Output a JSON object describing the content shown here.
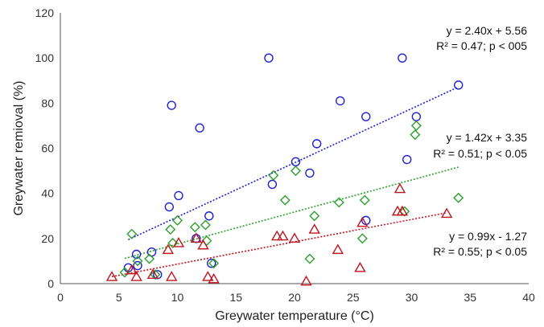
{
  "chart_data": {
    "type": "scatter",
    "xlabel": "Greywater temperature (°C)",
    "ylabel": "Greywater remioval (%)",
    "xlim": [
      0,
      40
    ],
    "ylim": [
      0,
      120
    ],
    "x_ticks": [
      0,
      5,
      10,
      15,
      20,
      25,
      30,
      35,
      40
    ],
    "y_ticks": [
      0,
      20,
      40,
      60,
      80,
      100,
      120
    ],
    "grid": false,
    "series": [
      {
        "marker": "circle",
        "color": "#1f1fd6",
        "points": [
          [
            5.8,
            7
          ],
          [
            6.5,
            13
          ],
          [
            6.6,
            8
          ],
          [
            7.8,
            14
          ],
          [
            8.3,
            4
          ],
          [
            9.3,
            34
          ],
          [
            9.5,
            79
          ],
          [
            10.1,
            39
          ],
          [
            11.6,
            20
          ],
          [
            11.9,
            69
          ],
          [
            12.7,
            30
          ],
          [
            12.9,
            9
          ],
          [
            17.8,
            100
          ],
          [
            18.1,
            44
          ],
          [
            20.1,
            54
          ],
          [
            21.3,
            49
          ],
          [
            21.9,
            62
          ],
          [
            23.9,
            81
          ],
          [
            26.1,
            74
          ],
          [
            26.1,
            28
          ],
          [
            29.2,
            100
          ],
          [
            29.6,
            55
          ],
          [
            30.4,
            74
          ],
          [
            34.0,
            88
          ]
        ],
        "trend": {
          "slope": 2.4,
          "intercept": 5.56
        },
        "annotation": {
          "line1": "y = 2.40x + 5.56",
          "line2": "R² = 0.47; p < 005"
        }
      },
      {
        "marker": "diamond",
        "color": "#2ca02c",
        "points": [
          [
            5.5,
            5
          ],
          [
            6.1,
            22
          ],
          [
            6.6,
            10
          ],
          [
            7.6,
            11
          ],
          [
            8.1,
            4
          ],
          [
            9.4,
            24
          ],
          [
            9.6,
            18
          ],
          [
            10.0,
            28
          ],
          [
            11.5,
            25
          ],
          [
            12.4,
            26
          ],
          [
            12.5,
            19
          ],
          [
            13.1,
            9
          ],
          [
            18.2,
            48
          ],
          [
            19.2,
            37
          ],
          [
            20.1,
            50
          ],
          [
            21.3,
            11
          ],
          [
            21.7,
            30
          ],
          [
            23.8,
            36
          ],
          [
            25.8,
            20
          ],
          [
            26.0,
            37
          ],
          [
            29.4,
            32
          ],
          [
            30.3,
            66
          ],
          [
            30.4,
            70
          ],
          [
            34.0,
            38
          ]
        ],
        "trend": {
          "slope": 1.42,
          "intercept": 3.35
        },
        "annotation": {
          "line1": "y = 1.42x + 3.35",
          "line2": "R² = 0.51; p < 0.05"
        }
      },
      {
        "marker": "triangle",
        "color": "#c0141e",
        "points": [
          [
            4.4,
            3
          ],
          [
            6.1,
            6
          ],
          [
            6.5,
            3
          ],
          [
            7.9,
            4
          ],
          [
            9.2,
            15
          ],
          [
            9.5,
            3
          ],
          [
            10.1,
            18
          ],
          [
            11.6,
            20
          ],
          [
            12.2,
            17
          ],
          [
            12.6,
            3
          ],
          [
            13.1,
            2
          ],
          [
            18.5,
            21
          ],
          [
            19.0,
            21
          ],
          [
            20.0,
            20
          ],
          [
            21.0,
            1
          ],
          [
            21.7,
            24
          ],
          [
            23.7,
            15
          ],
          [
            25.6,
            7
          ],
          [
            25.8,
            27
          ],
          [
            28.8,
            32
          ],
          [
            29.0,
            42
          ],
          [
            29.2,
            32
          ],
          [
            33.0,
            31
          ]
        ],
        "trend": {
          "slope": 0.99,
          "intercept": -1.27
        },
        "annotation": {
          "line1": "y = 0.99x - 1.27",
          "line2": "R² = 0.55; p < 0.05"
        }
      }
    ]
  }
}
